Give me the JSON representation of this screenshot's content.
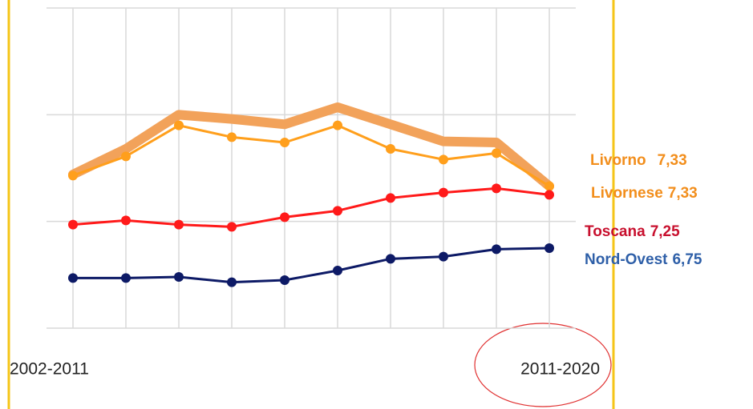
{
  "chart_data": {
    "type": "line",
    "categories": [
      "2002-2011",
      null,
      null,
      null,
      null,
      null,
      null,
      null,
      null,
      "2011-2020"
    ],
    "ylim": [
      6,
      9
    ],
    "yticks": [
      6,
      7,
      8,
      9
    ],
    "grid": true,
    "series": [
      {
        "name": "Livorno",
        "color": "#f2a25a",
        "label_color": "#f28e1c",
        "width": 12,
        "values": [
          7.44,
          7.68,
          8.0,
          7.96,
          7.91,
          8.07,
          7.91,
          7.75,
          7.74,
          7.33
        ],
        "value_labels": [
          null,
          null,
          null,
          null,
          null,
          null,
          null,
          null,
          null,
          "7,33"
        ]
      },
      {
        "name": "Livornese",
        "color": "#ff9f1c",
        "label_color": "#f28e1c",
        "width": 3,
        "values": [
          7.43,
          7.61,
          7.9,
          7.79,
          7.74,
          7.9,
          7.68,
          7.58,
          7.64,
          7.33
        ],
        "value_labels": [
          null,
          null,
          null,
          null,
          null,
          null,
          null,
          null,
          null,
          "7,33"
        ]
      },
      {
        "name": "Toscana",
        "color": "#ff1a1a",
        "label_color": "#c8102e",
        "width": 3,
        "values": [
          6.97,
          7.01,
          6.97,
          6.95,
          7.04,
          7.1,
          7.22,
          7.27,
          7.31,
          7.25
        ],
        "value_labels": [
          null,
          null,
          null,
          null,
          null,
          null,
          null,
          null,
          null,
          "7,25"
        ]
      },
      {
        "name": "Nord-Ovest",
        "color": "#0d1a66",
        "label_color": "#2e5fa8",
        "width": 3,
        "values": [
          6.47,
          6.47,
          6.48,
          6.43,
          6.45,
          6.54,
          6.65,
          6.67,
          6.74,
          6.75
        ],
        "value_labels": [
          null,
          null,
          null,
          null,
          null,
          null,
          null,
          null,
          null,
          "6,75"
        ]
      }
    ]
  }
}
